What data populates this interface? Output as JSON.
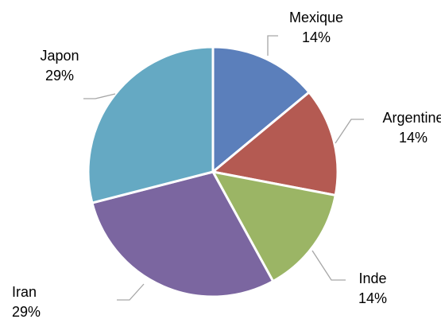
{
  "chart_data": {
    "type": "pie",
    "title": "",
    "slices": [
      {
        "label": "Mexique",
        "value": 14,
        "display": "14%",
        "color": "#5b7fbb"
      },
      {
        "label": "Argentine",
        "value": 14,
        "display": "14%",
        "color": "#b45a52"
      },
      {
        "label": "Inde",
        "value": 14,
        "display": "14%",
        "color": "#9bb565"
      },
      {
        "label": "Iran",
        "value": 29,
        "display": "29%",
        "color": "#7b66a0"
      },
      {
        "label": "Japon",
        "value": 29,
        "display": "29%",
        "color": "#65a9c3"
      }
    ],
    "start_angle_deg": 0,
    "direction": "clockwise",
    "legend": "none",
    "data_labels": "category and percent, outside with leader lines"
  }
}
